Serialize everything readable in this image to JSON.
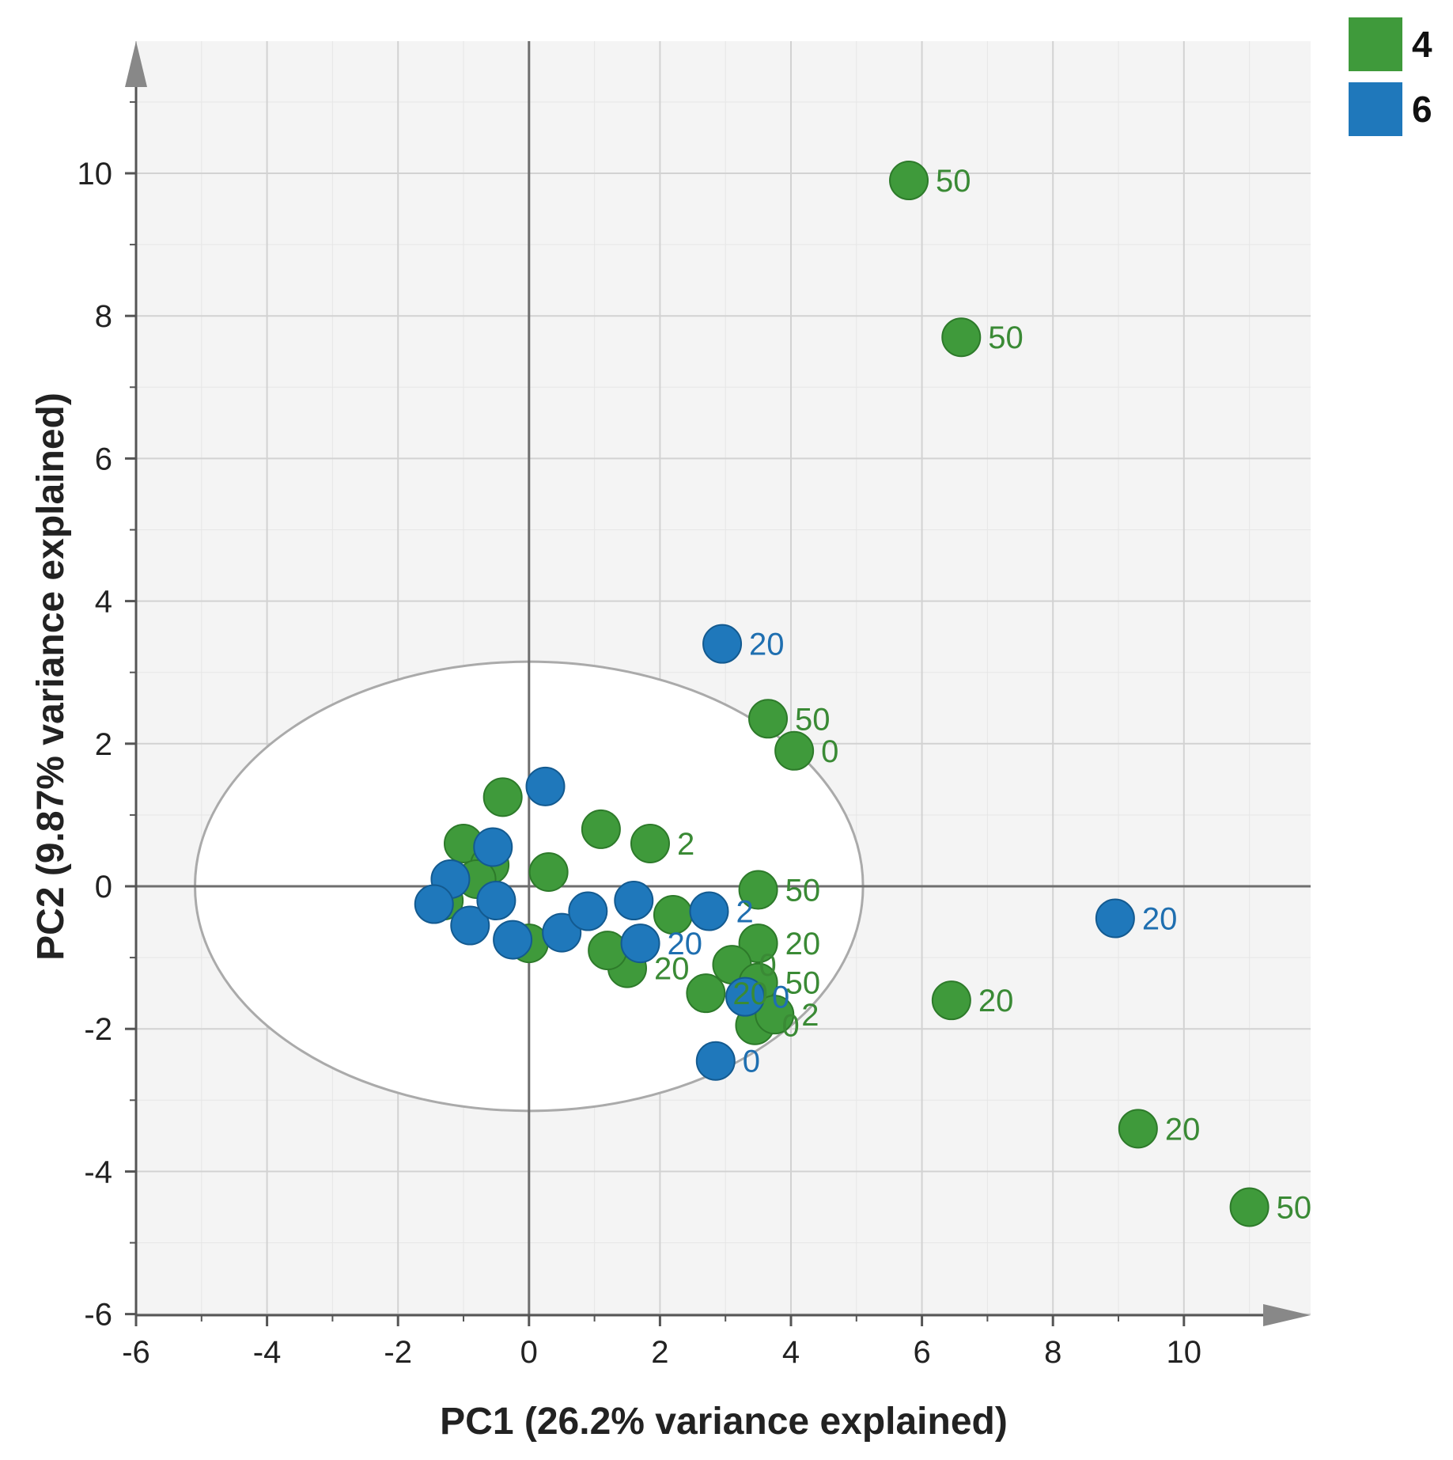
{
  "chart_data": {
    "type": "scatter",
    "title": "",
    "xlabel": "PC1 (26.2% variance explained)",
    "ylabel": "PC2 (9.87% variance explained)",
    "xlim": [
      -6,
      12
    ],
    "ylim": [
      -6,
      12
    ],
    "xticks": [
      -6,
      -4,
      -2,
      0,
      2,
      4,
      6,
      8,
      10
    ],
    "yticks": [
      -6,
      -4,
      -2,
      0,
      2,
      4,
      6,
      8,
      10
    ],
    "grid": true,
    "confidence_ellipse": {
      "center": [
        0,
        0
      ],
      "radii": [
        5.1,
        3.15
      ]
    },
    "legend": {
      "position": "top-right"
    },
    "series": [
      {
        "name": "4",
        "color": "#3f9a3b",
        "label_color": "#3a8a35",
        "points": [
          {
            "x": 5.8,
            "y": 9.9,
            "label": "50"
          },
          {
            "x": 6.6,
            "y": 7.7,
            "label": "50"
          },
          {
            "x": 3.65,
            "y": 2.35,
            "label": "50"
          },
          {
            "x": 4.05,
            "y": 1.9,
            "label": "0"
          },
          {
            "x": 1.85,
            "y": 0.6,
            "label": "2"
          },
          {
            "x": 3.5,
            "y": -0.05,
            "label": "50"
          },
          {
            "x": 3.5,
            "y": -0.8,
            "label": "20"
          },
          {
            "x": 3.1,
            "y": -1.1,
            "label": "0"
          },
          {
            "x": 3.5,
            "y": -1.35,
            "label": "50"
          },
          {
            "x": 3.45,
            "y": -1.95,
            "label": "0"
          },
          {
            "x": 3.75,
            "y": -1.8,
            "label": "2"
          },
          {
            "x": 2.7,
            "y": -1.5,
            "label": "20"
          },
          {
            "x": 1.5,
            "y": -1.15,
            "label": "20"
          },
          {
            "x": 6.45,
            "y": -1.6,
            "label": "20"
          },
          {
            "x": 9.3,
            "y": -3.4,
            "label": "20"
          },
          {
            "x": 11.0,
            "y": -4.5,
            "label": "50"
          },
          {
            "x": -0.4,
            "y": 1.25,
            "label": ""
          },
          {
            "x": -1.0,
            "y": 0.6,
            "label": ""
          },
          {
            "x": -0.6,
            "y": 0.3,
            "label": ""
          },
          {
            "x": 0.3,
            "y": 0.2,
            "label": ""
          },
          {
            "x": 1.1,
            "y": 0.8,
            "label": ""
          },
          {
            "x": -1.3,
            "y": -0.2,
            "label": ""
          },
          {
            "x": 0.0,
            "y": -0.8,
            "label": ""
          },
          {
            "x": 1.2,
            "y": -0.9,
            "label": ""
          },
          {
            "x": 2.2,
            "y": -0.4,
            "label": ""
          },
          {
            "x": -0.8,
            "y": 0.1,
            "label": ""
          }
        ]
      },
      {
        "name": "6",
        "color": "#1f78bb",
        "label_color": "#1f6fb0",
        "points": [
          {
            "x": 2.95,
            "y": 3.4,
            "label": "20"
          },
          {
            "x": 8.95,
            "y": -0.45,
            "label": "20"
          },
          {
            "x": 2.85,
            "y": -2.45,
            "label": "0"
          },
          {
            "x": 3.3,
            "y": -1.55,
            "label": "0"
          },
          {
            "x": 2.75,
            "y": -0.35,
            "label": "2"
          },
          {
            "x": 1.7,
            "y": -0.8,
            "label": "20"
          },
          {
            "x": 0.25,
            "y": 1.4,
            "label": ""
          },
          {
            "x": 1.6,
            "y": -0.2,
            "label": ""
          },
          {
            "x": -1.2,
            "y": 0.1,
            "label": ""
          },
          {
            "x": -1.45,
            "y": -0.25,
            "label": ""
          },
          {
            "x": -0.55,
            "y": 0.55,
            "label": ""
          },
          {
            "x": -0.9,
            "y": -0.55,
            "label": ""
          },
          {
            "x": -0.25,
            "y": -0.75,
            "label": ""
          },
          {
            "x": 0.5,
            "y": -0.65,
            "label": ""
          },
          {
            "x": 0.9,
            "y": -0.35,
            "label": ""
          },
          {
            "x": -0.5,
            "y": -0.2,
            "label": ""
          }
        ]
      }
    ]
  }
}
